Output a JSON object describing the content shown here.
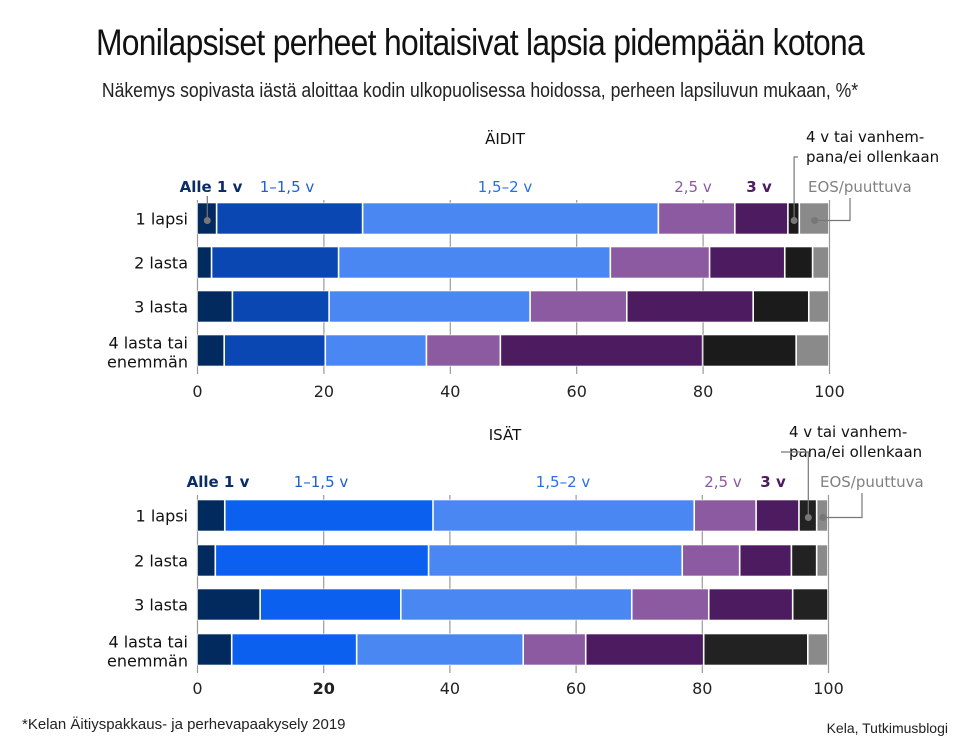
{
  "title": "Monilapsiset perheet hoitaisivat lapsia pidempään kotona",
  "subtitle": "Näkemys sopivasta iästä aloittaa kodin ulkopuolisessa hoidossa, perheen lapsiluvun mukaan, %*",
  "footnote": "*Kelan Äitiyspakkaus- ja perhevapaakysely 2019",
  "source": "Kela, Tutkimusblogi",
  "chart_data": [
    {
      "type": "bar",
      "stacked": true,
      "orientation": "horizontal",
      "title": "ÄIDIT",
      "categories": [
        "1 lapsi",
        "2 lasta",
        "3 lasta",
        "4 lasta tai enemmän"
      ],
      "category_lines": [
        [
          "1 lapsi"
        ],
        [
          "2 lasta"
        ],
        [
          "3 lasta"
        ],
        [
          "4 lasta tai",
          "enemmän"
        ]
      ],
      "xlim": [
        0,
        100
      ],
      "xticks": [
        0,
        20,
        40,
        60,
        80,
        100
      ],
      "grid": true,
      "series": [
        {
          "name": "Alle 1 v",
          "color": "#022a5e",
          "label_color": "#0b2d66",
          "values": [
            3.1,
            2.3,
            5.6,
            4.3
          ]
        },
        {
          "name": "1–1,5 v",
          "color": "#0b47b3",
          "label_color": "#1e5fd0",
          "values": [
            23.1,
            20.1,
            15.3,
            16.0
          ]
        },
        {
          "name": "1,5–2  v",
          "color": "#4a87f2",
          "label_color": "#2a6fe8",
          "values": [
            46.8,
            43.0,
            31.8,
            16.0
          ]
        },
        {
          "name": "2,5 v",
          "color": "#8b5aa0",
          "label_color": "#8b5aa0",
          "values": [
            12.1,
            15.7,
            15.3,
            11.7
          ]
        },
        {
          "name": "3 v",
          "color": "#4d1b5f",
          "label_color": "#4d1b5f",
          "values": [
            8.4,
            11.9,
            20.0,
            32.0
          ]
        },
        {
          "name": "4 v tai vanhempana/ei ollenkaan",
          "label_lines": [
            "4 v tai vanhem-",
            "pana/ei ollenkaan"
          ],
          "color": "#1b1b1b",
          "label_color": "#111111",
          "values": [
            1.8,
            4.4,
            8.8,
            14.8
          ]
        },
        {
          "name": "EOS/puuttuva",
          "color": "#8a8a8a",
          "label_color": "#808080",
          "values": [
            4.7,
            2.6,
            3.2,
            5.2
          ]
        }
      ]
    },
    {
      "type": "bar",
      "stacked": true,
      "orientation": "horizontal",
      "title": "ISÄT",
      "categories": [
        "1 lapsi",
        "2 lasta",
        "3 lasta",
        "4 lasta tai enemmän"
      ],
      "category_lines": [
        [
          "1 lapsi"
        ],
        [
          "2 lasta"
        ],
        [
          "3 lasta"
        ],
        [
          "4 lasta tai",
          "enemmän"
        ]
      ],
      "xlim": [
        0,
        100
      ],
      "xticks": [
        0,
        20,
        40,
        60,
        80,
        100
      ],
      "grid": true,
      "series": [
        {
          "name": "Alle 1 v",
          "color": "#022a5e",
          "label_color": "#0b2d66",
          "values": [
            4.4,
            2.9,
            10.0,
            5.5
          ]
        },
        {
          "name": "1–1,5 v",
          "color": "#0b60f0",
          "label_color": "#1e5fd0",
          "values": [
            33.0,
            33.8,
            22.3,
            19.8
          ]
        },
        {
          "name": "1,5–2  v",
          "color": "#4a87f2",
          "label_color": "#2a6fe8",
          "values": [
            41.4,
            40.2,
            36.6,
            26.4
          ]
        },
        {
          "name": "2,5 v",
          "color": "#8b5aa0",
          "label_color": "#8b5aa0",
          "values": [
            9.8,
            9.1,
            12.2,
            9.9
          ]
        },
        {
          "name": "3 v",
          "color": "#4d1b5f",
          "label_color": "#4d1b5f",
          "values": [
            6.8,
            8.2,
            13.3,
            18.7
          ]
        },
        {
          "name": "4 v tai vanhempana/ei ollenkaan",
          "label_lines": [
            "4 v tai vanhem-",
            "pana/ei ollenkaan"
          ],
          "color": "#222222",
          "label_color": "#111111",
          "values": [
            2.8,
            4.0,
            5.6,
            16.5
          ]
        },
        {
          "name": "EOS/puuttuva",
          "color": "#8a8a8a",
          "label_color": "#808080",
          "values": [
            1.8,
            1.8,
            0,
            3.2
          ]
        }
      ]
    }
  ]
}
